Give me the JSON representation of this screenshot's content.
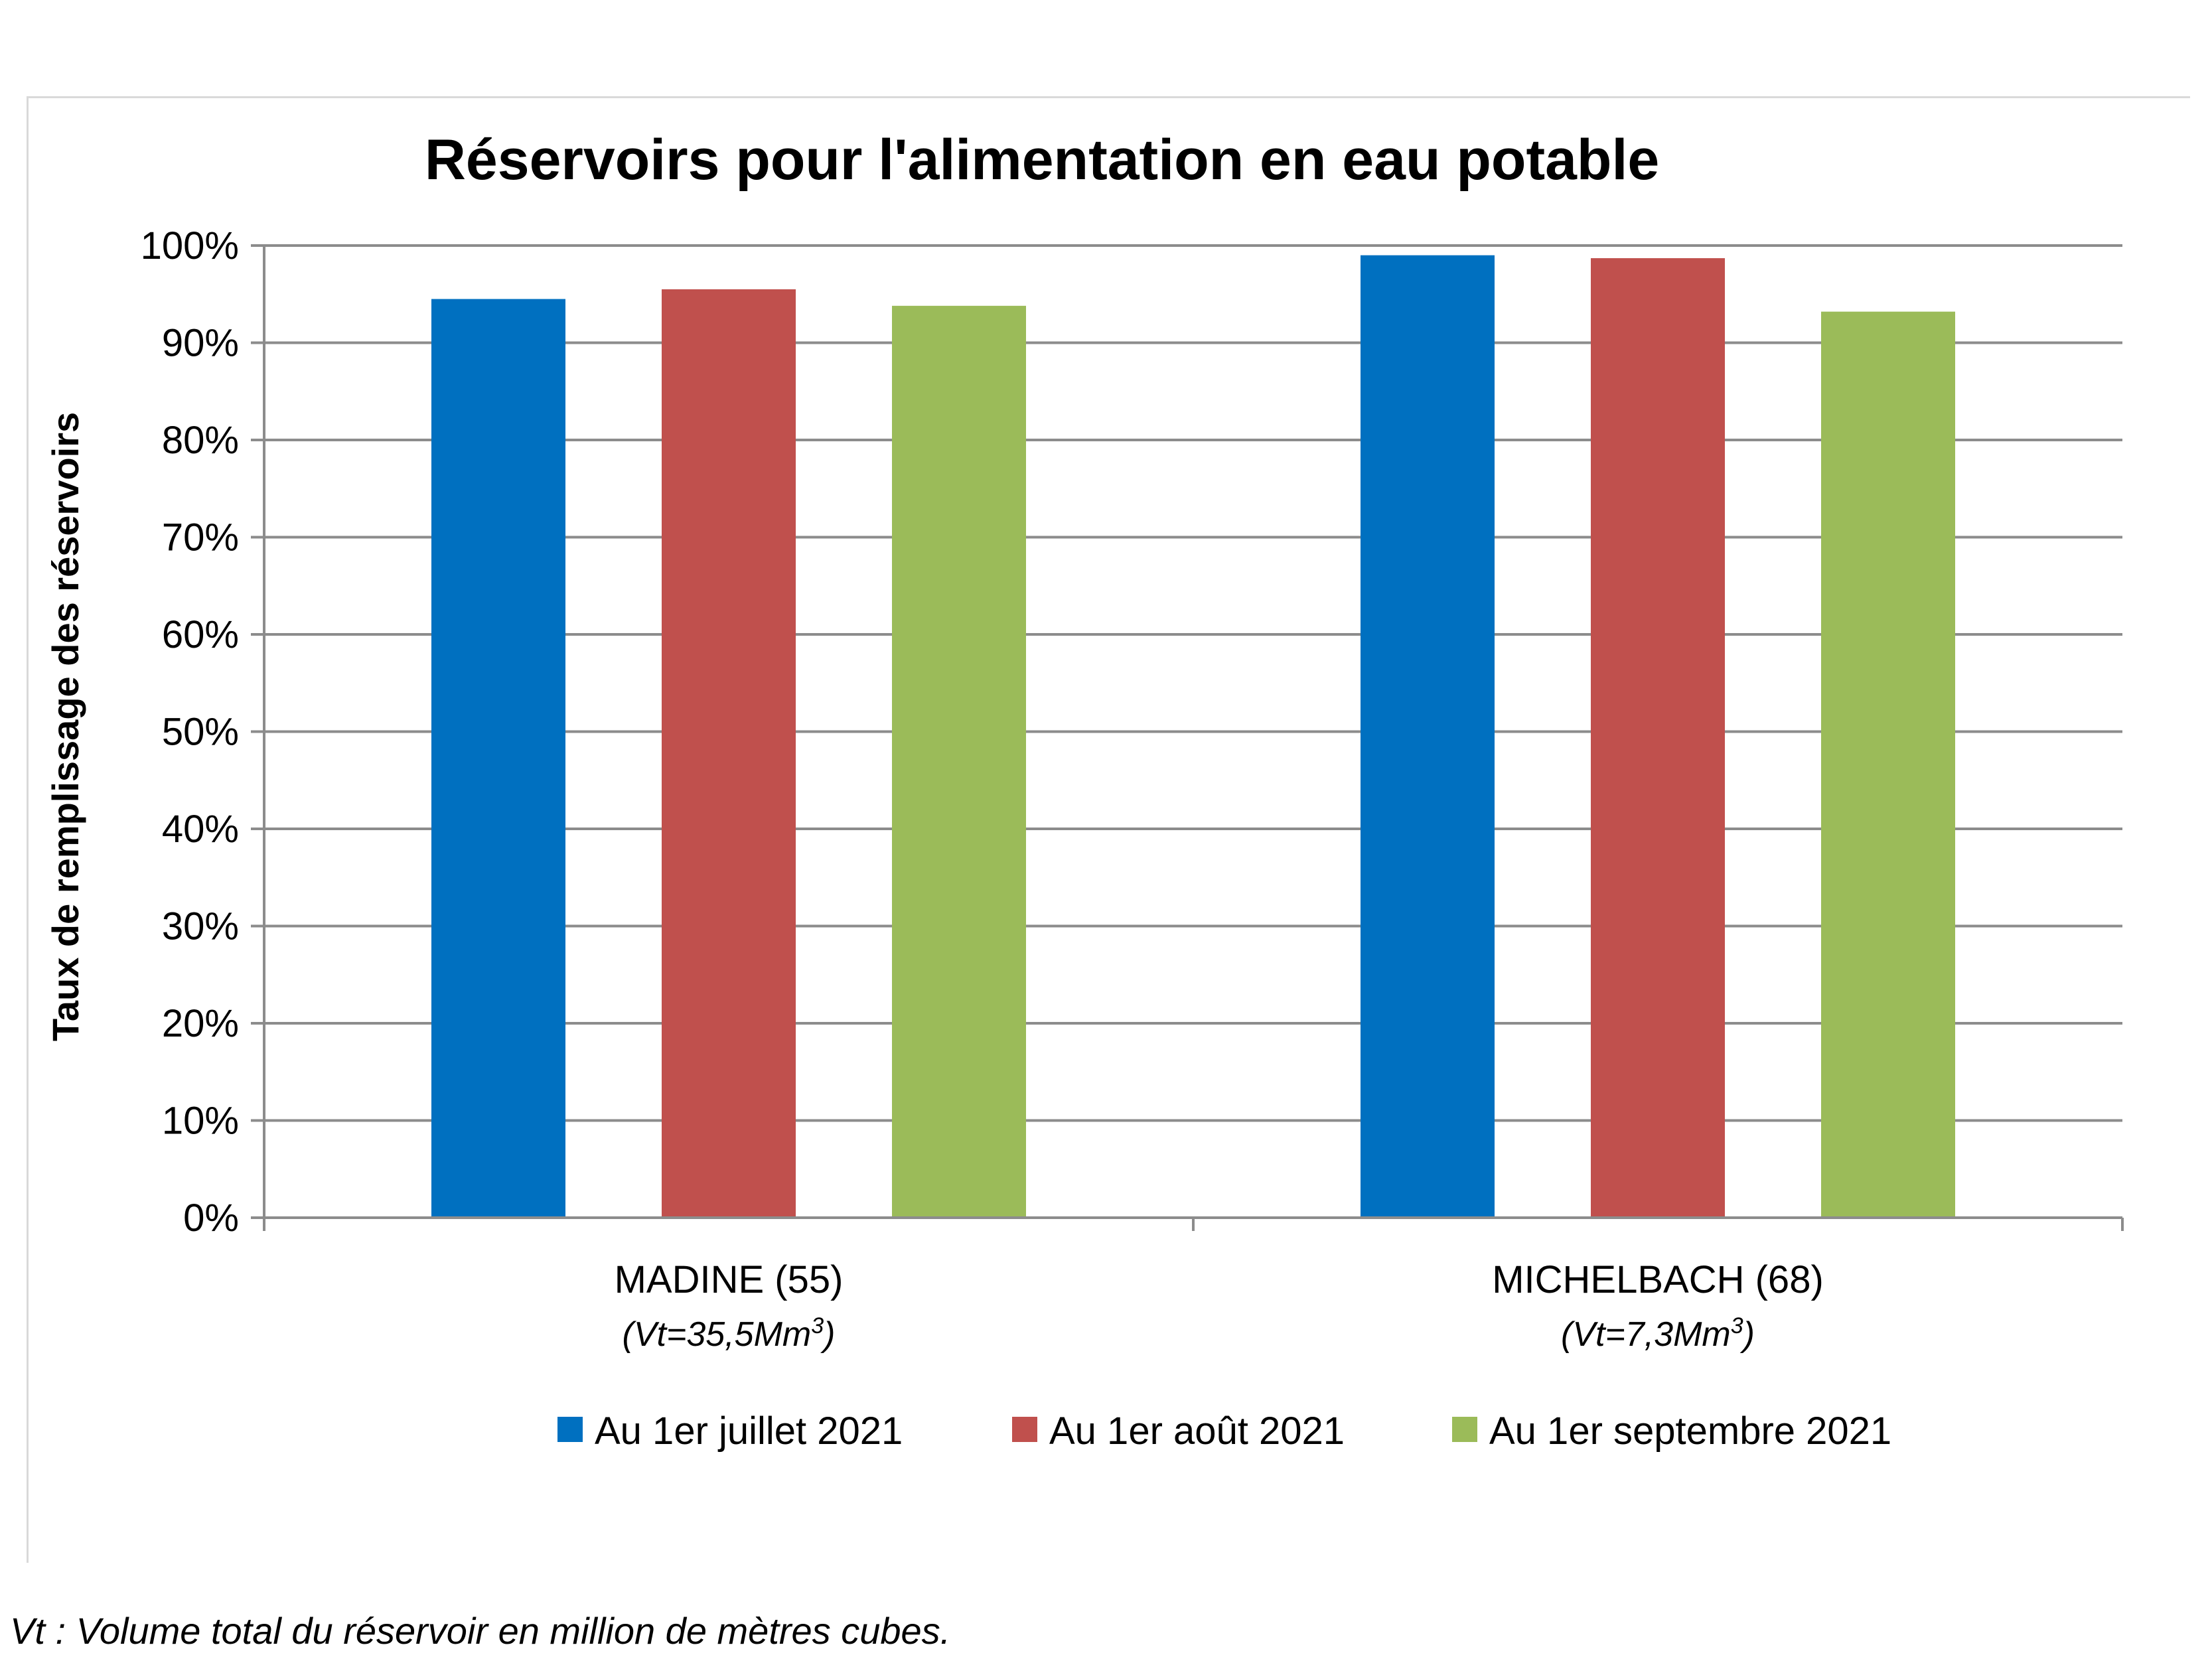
{
  "chart_data": {
    "type": "bar",
    "title": "Réservoirs pour l'alimentation en eau potable",
    "ylabel": "Taux de remplissage des réservoirs",
    "ylim": [
      0,
      100
    ],
    "yticks": [
      "0%",
      "10%",
      "20%",
      "30%",
      "40%",
      "50%",
      "60%",
      "70%",
      "80%",
      "90%",
      "100%"
    ],
    "categories": [
      "MADINE (55)",
      "MICHELBACH (68)"
    ],
    "category_volumes": [
      {
        "prefix": "(Vt=35,5Mm",
        "sup": "3",
        "suffix": ")"
      },
      {
        "prefix": "(Vt=7,3Mm",
        "sup": "3",
        "suffix": ")"
      }
    ],
    "series": [
      {
        "name": "Au 1er juillet 2021",
        "color": "#0070C0",
        "values": [
          94.5,
          99.0
        ]
      },
      {
        "name": "Au 1er août 2021",
        "color": "#C0504D",
        "values": [
          95.5,
          98.7
        ]
      },
      {
        "name": "Au 1er septembre 2021",
        "color": "#9BBB59",
        "values": [
          93.8,
          93.2
        ]
      }
    ],
    "grid": true,
    "legend": "bottom"
  },
  "footnote": "Vt : Volume total du réservoir en million de mètres cubes."
}
